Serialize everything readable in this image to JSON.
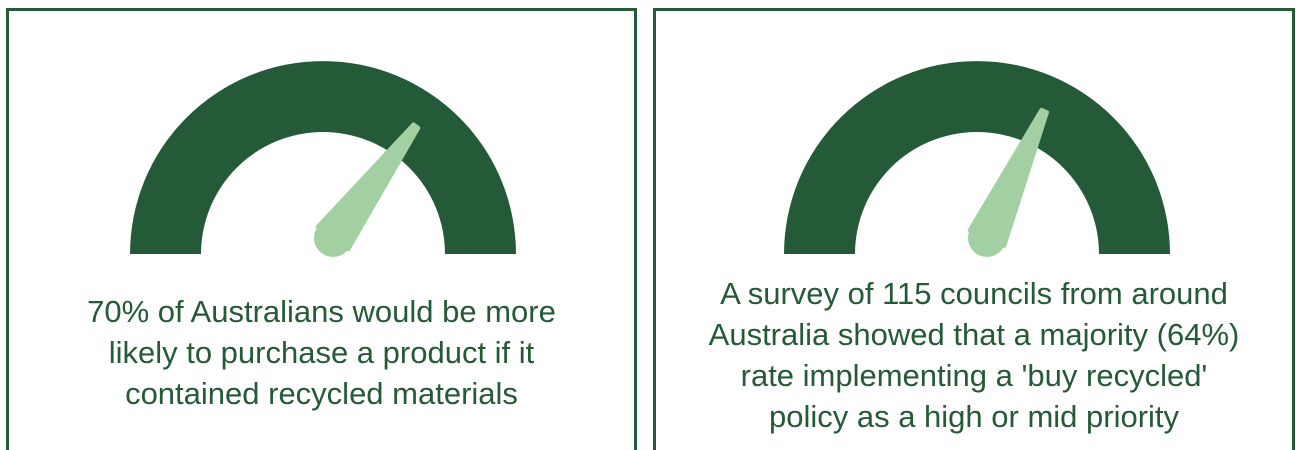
{
  "colors": {
    "gauge_arc": "#245a38",
    "gauge_needle": "#a2d0a2",
    "border": "#245a38",
    "text": "#245a38"
  },
  "cards": [
    {
      "value_percent": 70,
      "caption_lines": [
        "70% of Australians would be more",
        "likely to purchase a product if it",
        "contained recycled materials"
      ]
    },
    {
      "value_percent": 64,
      "caption_lines": [
        "A survey of 115 councils from around",
        "Australia showed that a majority (64%)",
        "rate implementing a 'buy recycled'",
        "policy as a high or mid priority"
      ]
    }
  ]
}
